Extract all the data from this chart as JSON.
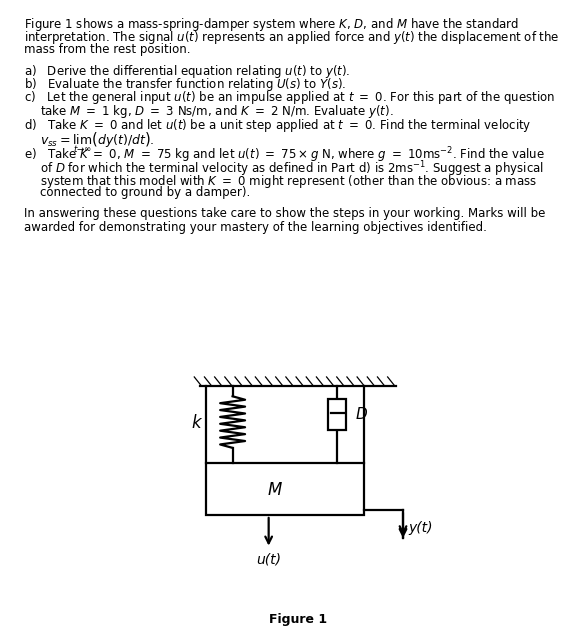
{
  "bg_color": "#ffffff",
  "text_color": "#000000",
  "intro": "Figure 1 shows a mass-spring-damper system where $K$, $D$, and $M$ have the standard\ninterpretation. The signal $u(t)$ represents an applied force and $y(t)$ the displacement of the\nmass from the rest position.",
  "q_a": "a)   Derive the differential equation relating $u(t)$ to $y(t)$.",
  "q_b": "b)   Evaluate the transfer function relating $U(s)$ to $Y(s)$.",
  "q_c1": "c)   Let the general input $u(t)$ be an impulse applied at $t~=~0$. For this part of the question",
  "q_c2": "      take $M~=~1$ kg, $D~=~3$ Ns/m, and $K~=~2$ N/m. Evaluate $y(t)$.",
  "q_d1": "d)   Take $K~=~0$ and let $u(t)$ be a unit step applied at $t~=~0$. Find the terminal velocity",
  "q_d2": "      $v_{ss} = \\lim_{t\\to\\infty}\\left(dy(t)/dt\\right)$.",
  "q_e1": "e)   Take $K~=~0$, $M~=~75$ kg and let $u(t)~=~75 \\times g$ N, where $g~=~10\\mathrm{ms}^{-2}$. Find the value",
  "q_e2": "      of $D$ for which the terminal velocity as defined in Part d) is $2\\mathrm{ms}^{-1}$. Suggest a physical",
  "q_e3": "      system that this model with $K~=~0$ might represent (other than the obvious: a mass",
  "q_e4": "      connected to ground by a damper).",
  "footer1": "In answering these questions take care to show the steps in your working. Marks will be",
  "footer2": "awarded for demonstrating your mastery of the learning objectives identified.",
  "figure_label": "Figure 1",
  "fontsize_body": 8.5,
  "fontsize_diagram": 11
}
